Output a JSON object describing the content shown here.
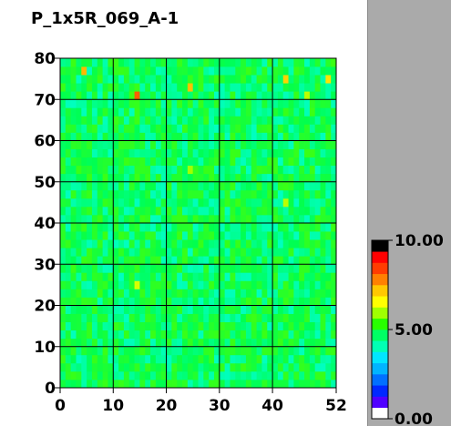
{
  "chart_data": {
    "type": "heatmap",
    "title": "P_1x5R_069_A-1",
    "xlabel": "",
    "ylabel": "",
    "x_range": [
      0,
      52
    ],
    "y_range": [
      0,
      80
    ],
    "x_ticks": [
      "0",
      "10",
      "20",
      "30",
      "40",
      "52"
    ],
    "y_ticks": [
      "0",
      "10",
      "20",
      "30",
      "40",
      "50",
      "60",
      "70",
      "80"
    ],
    "grid": true,
    "color_scale": {
      "min": 0.0,
      "max": 10.0,
      "tick_labels": [
        "0.00",
        "5.00",
        "10.00"
      ],
      "tick_values": [
        0,
        5,
        10
      ],
      "colors": [
        "#ffffff",
        "#5000ff",
        "#0028ff",
        "#0070ff",
        "#00b4ff",
        "#00e6ff",
        "#00ffb4",
        "#00ff64",
        "#28ff00",
        "#a0ff00",
        "#ffff00",
        "#ffc800",
        "#ff8000",
        "#ff3c00",
        "#ff0000",
        "#000000"
      ],
      "legend_placement": "right"
    },
    "base_value": 5.0,
    "noise_amplitude": 0.9,
    "hotspots": [
      {
        "x": 4,
        "y": 76,
        "value": 8.3
      },
      {
        "x": 14,
        "y": 71,
        "value": 9.2
      },
      {
        "x": 24,
        "y": 73,
        "value": 8.2
      },
      {
        "x": 42,
        "y": 75,
        "value": 8.0
      },
      {
        "x": 50,
        "y": 75,
        "value": 7.8
      },
      {
        "x": 46,
        "y": 71,
        "value": 7.0
      },
      {
        "x": 14,
        "y": 24,
        "value": 7.2
      },
      {
        "x": 24,
        "y": 53,
        "value": 6.8
      },
      {
        "x": 42,
        "y": 44,
        "value": 7.0
      }
    ]
  }
}
